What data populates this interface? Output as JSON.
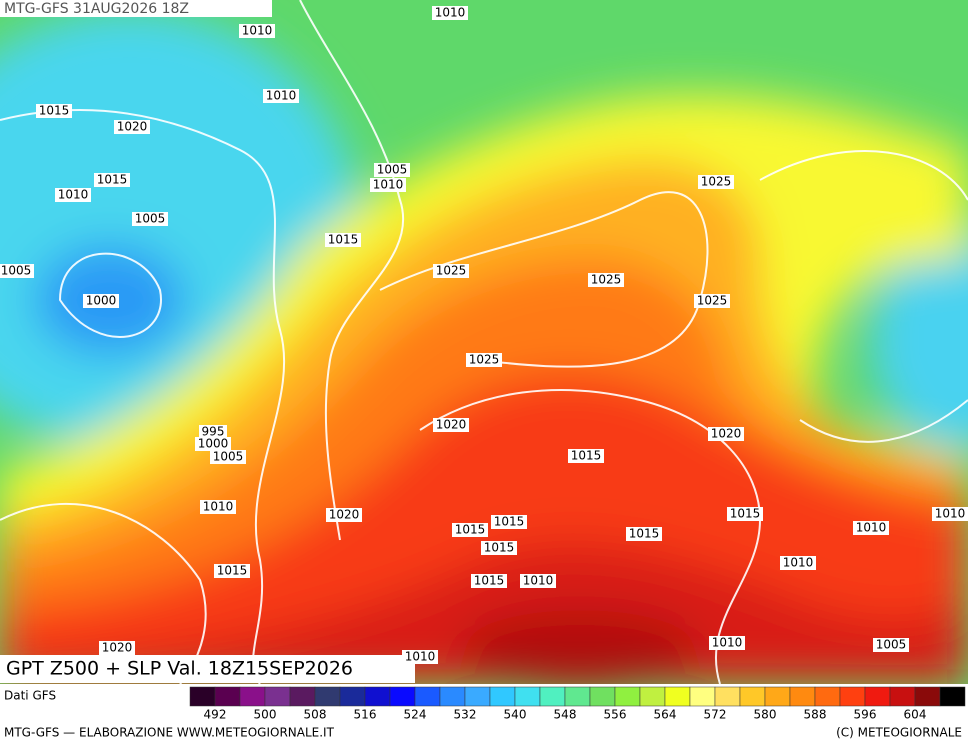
{
  "header": "MTG-GFS 31AUG2026 18Z",
  "title": "GPT Z500 + SLP Val. 18Z15SEP2026",
  "isobar_labels": [
    "1010",
    "1010",
    "1010",
    "1015",
    "1020",
    "1015",
    "1010",
    "1005",
    "1005",
    "1010",
    "1015",
    "1025",
    "1025",
    "1025",
    "1025",
    "1005",
    "1000",
    "995",
    "1000",
    "1005",
    "1025",
    "1020",
    "1020",
    "1015",
    "1010",
    "1020",
    "1015",
    "1015",
    "1015",
    "1015",
    "1015",
    "1010",
    "1010",
    "1010",
    "1015",
    "1015",
    "1010",
    "1020",
    "1010",
    "1005",
    "1010"
  ],
  "colorbar": {
    "source": "Dati GFS",
    "labels": [
      492,
      500,
      508,
      516,
      524,
      532,
      540,
      548,
      556,
      564,
      572,
      580,
      588,
      596,
      604
    ]
  },
  "footer": {
    "left": "MTG-GFS — ELABORAZIONE WWW.METEOGIORNALE.IT",
    "right": "(C) METEOGIORNALE"
  }
}
